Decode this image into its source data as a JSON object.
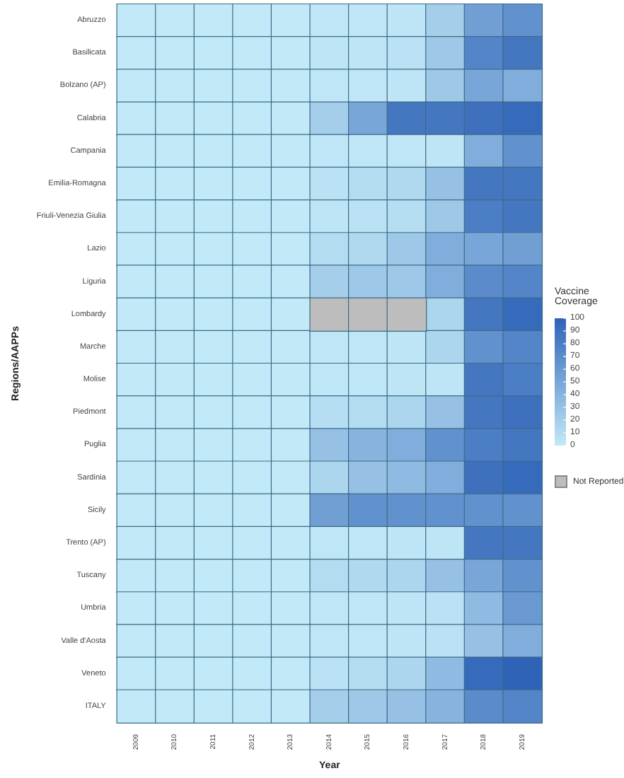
{
  "chart_data": {
    "type": "heatmap",
    "xlabel": "Year",
    "ylabel": "Regions/AAPPs",
    "clabel": "Vaccine Coverage",
    "categories": [
      "2009",
      "2010",
      "2011",
      "2012",
      "2013",
      "2014",
      "2015",
      "2016",
      "2017",
      "2018",
      "2019"
    ],
    "y_categories": [
      "Abruzzo",
      "Basilicata",
      "Bolzano (AP)",
      "Calabria",
      "Campania",
      "Emilia-Romagna",
      "Friuli-Venezia Giulia",
      "Lazio",
      "Liguria",
      "Lombardy",
      "Marche",
      "Molise",
      "Piedmont",
      "Puglia",
      "Sardinia",
      "Sicily",
      "Trento (AP)",
      "Tuscany",
      "Umbria",
      "Valle d'Aosta",
      "Veneto",
      "ITALY"
    ],
    "cells": [
      [
        0,
        0,
        0,
        0,
        0,
        2,
        2,
        3,
        20,
        55,
        65
      ],
      [
        0,
        0,
        0,
        0,
        0,
        3,
        3,
        5,
        25,
        75,
        85
      ],
      [
        0,
        0,
        0,
        0,
        0,
        2,
        2,
        3,
        25,
        50,
        45
      ],
      [
        0,
        0,
        0,
        0,
        0,
        20,
        50,
        85,
        85,
        90,
        95
      ],
      [
        0,
        0,
        0,
        0,
        0,
        2,
        2,
        2,
        3,
        45,
        65
      ],
      [
        0,
        0,
        0,
        0,
        0,
        5,
        10,
        12,
        30,
        85,
        85
      ],
      [
        0,
        0,
        0,
        0,
        0,
        3,
        5,
        8,
        25,
        80,
        85
      ],
      [
        0,
        0,
        0,
        0,
        0,
        10,
        12,
        25,
        45,
        50,
        55
      ],
      [
        0,
        0,
        0,
        0,
        0,
        20,
        25,
        25,
        45,
        70,
        75
      ],
      [
        0,
        0,
        0,
        0,
        0,
        null,
        null,
        null,
        15,
        85,
        95
      ],
      [
        0,
        0,
        0,
        0,
        0,
        2,
        2,
        3,
        15,
        65,
        75
      ],
      [
        0,
        0,
        0,
        0,
        0,
        2,
        2,
        3,
        3,
        85,
        80
      ],
      [
        0,
        0,
        0,
        0,
        0,
        8,
        10,
        15,
        30,
        85,
        90
      ],
      [
        0,
        0,
        0,
        0,
        0,
        30,
        40,
        45,
        65,
        80,
        85
      ],
      [
        0,
        0,
        0,
        0,
        0,
        15,
        30,
        35,
        45,
        90,
        95
      ],
      [
        0,
        0,
        0,
        0,
        0,
        55,
        65,
        65,
        65,
        65,
        65
      ],
      [
        0,
        0,
        0,
        0,
        0,
        2,
        2,
        3,
        3,
        85,
        85
      ],
      [
        0,
        0,
        0,
        0,
        0,
        10,
        12,
        15,
        30,
        50,
        65
      ],
      [
        0,
        0,
        0,
        0,
        0,
        2,
        2,
        3,
        5,
        35,
        60
      ],
      [
        0,
        0,
        0,
        0,
        0,
        2,
        2,
        3,
        5,
        30,
        45
      ],
      [
        0,
        0,
        0,
        0,
        0,
        5,
        10,
        15,
        35,
        95,
        100
      ],
      [
        0,
        0,
        0,
        0,
        0,
        20,
        25,
        30,
        40,
        70,
        75
      ]
    ],
    "clim": [
      0,
      100
    ],
    "cticks": [
      0,
      10,
      20,
      30,
      40,
      50,
      60,
      70,
      80,
      90,
      100
    ],
    "annotations": [
      "Not Reported"
    ]
  }
}
